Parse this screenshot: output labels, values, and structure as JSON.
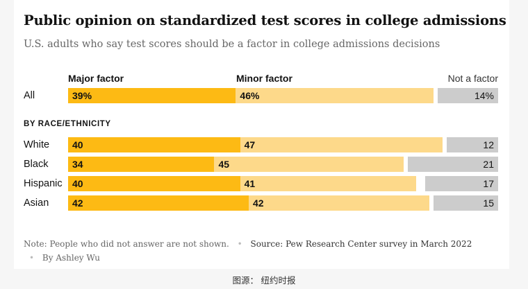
{
  "title": "Public opinion on standardized test scores in college admissions",
  "subtitle": "U.S. adults who say test scores should be a factor in college admissions decisions",
  "section_label": "BY RACE/ETHNICITY",
  "note": {
    "note_label": "Note:",
    "note_text": "People who did not answer are not shown.",
    "source_label": "Source:",
    "source_text": "Pew Research Center survey in March 2022",
    "byline": "By Ashley Wu"
  },
  "image_credit": "图源： 纽约时报",
  "colors": {
    "major": "#fdba14",
    "minor": "#fdd98a",
    "none": "#cccccc"
  },
  "chart_data": {
    "type": "bar",
    "stacked": true,
    "orientation": "horizontal",
    "categories": [
      "All",
      "White",
      "Black",
      "Hispanic",
      "Asian"
    ],
    "series": [
      {
        "name": "Major factor",
        "values": [
          39,
          40,
          34,
          40,
          42
        ],
        "labels": [
          "39%",
          "40",
          "34",
          "40",
          "42"
        ]
      },
      {
        "name": "Minor factor",
        "values": [
          46,
          47,
          45,
          41,
          42
        ],
        "labels": [
          "46%",
          "47",
          "45",
          "41",
          "42"
        ]
      },
      {
        "name": "Not a factor",
        "values": [
          14,
          12,
          21,
          17,
          15
        ],
        "labels": [
          "14%",
          "12",
          "21",
          "17",
          "15"
        ]
      }
    ],
    "legend": "top",
    "grid": false
  }
}
